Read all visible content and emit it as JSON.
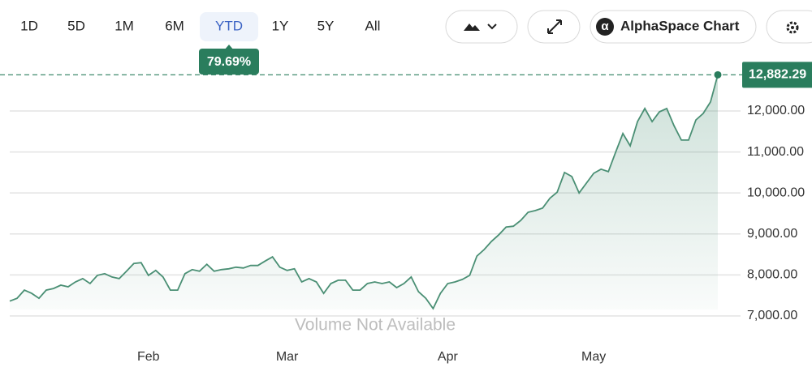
{
  "toolbar": {
    "ranges": [
      "1D",
      "5D",
      "1M",
      "6M",
      "YTD",
      "1Y",
      "5Y",
      "All"
    ],
    "selected": 4,
    "change": "79.69%",
    "chart_button": "AlphaSpace Chart"
  },
  "chart_data": {
    "type": "area",
    "annotation": "Volume Not Available",
    "color": "#4a8f74",
    "categories": [
      null,
      null,
      null,
      null,
      null,
      null,
      null,
      null,
      null,
      null,
      null,
      null,
      null,
      null,
      null,
      null,
      null,
      null,
      null,
      "Feb",
      null,
      null,
      null,
      null,
      null,
      null,
      null,
      null,
      null,
      null,
      null,
      null,
      null,
      null,
      null,
      null,
      null,
      null,
      "Mar",
      null,
      null,
      null,
      null,
      null,
      null,
      null,
      null,
      null,
      null,
      null,
      null,
      null,
      null,
      null,
      null,
      null,
      null,
      null,
      null,
      null,
      "Apr",
      null,
      null,
      null,
      null,
      null,
      null,
      null,
      null,
      null,
      null,
      null,
      null,
      null,
      null,
      null,
      null,
      null,
      null,
      null,
      "May",
      null,
      null,
      null,
      null,
      null,
      null,
      null,
      null,
      null,
      null,
      null,
      null,
      null,
      null,
      null,
      null,
      null
    ],
    "values": [
      7360,
      7430,
      7630,
      7550,
      7430,
      7630,
      7670,
      7750,
      7710,
      7830,
      7910,
      7790,
      7990,
      8030,
      7950,
      7910,
      8090,
      8280,
      8300,
      7990,
      8110,
      7950,
      7630,
      7630,
      8030,
      8130,
      8090,
      8260,
      8090,
      8130,
      8150,
      8190,
      8170,
      8230,
      8230,
      8340,
      8440,
      8190,
      8110,
      8150,
      7830,
      7910,
      7830,
      7550,
      7790,
      7870,
      7870,
      7630,
      7630,
      7790,
      7830,
      7790,
      7830,
      7690,
      7790,
      7950,
      7590,
      7430,
      7180,
      7550,
      7790,
      7830,
      7890,
      7990,
      8460,
      8620,
      8820,
      8980,
      9170,
      9190,
      9330,
      9530,
      9570,
      9630,
      9870,
      10020,
      10500,
      10400,
      10000,
      10240,
      10480,
      10580,
      10520,
      10990,
      11450,
      11150,
      11740,
      12060,
      11740,
      11980,
      12060,
      11640,
      11290,
      11290,
      11780,
      11940,
      12220,
      12882.29
    ],
    "value_labels": [
      null,
      null,
      null,
      null,
      null,
      null,
      null,
      null,
      null,
      null,
      null,
      null,
      null,
      null,
      null,
      null,
      null,
      null,
      null,
      null,
      null,
      null,
      null,
      null,
      null,
      null,
      null,
      null,
      null,
      null,
      null,
      null,
      null,
      null,
      null,
      null,
      null,
      null,
      null,
      null,
      null,
      null,
      null,
      null,
      null,
      null,
      null,
      null,
      null,
      null,
      null,
      null,
      null,
      null,
      null,
      null,
      null,
      null,
      null,
      null,
      null,
      null,
      null,
      null,
      null,
      null,
      null,
      null,
      null,
      null,
      null,
      null,
      null,
      null,
      null,
      null,
      null,
      null,
      null,
      null,
      null,
      null,
      null,
      null,
      null,
      null,
      null,
      null,
      null,
      null,
      null,
      null,
      null,
      null,
      null,
      null,
      null,
      "12,882.29"
    ],
    "ylim": [
      6600,
      13300
    ],
    "yticks": [
      {
        "value": 7000,
        "label": "7,000.00"
      },
      {
        "value": 8000,
        "label": "8,000.00"
      },
      {
        "value": 9000,
        "label": "9,000.00"
      },
      {
        "value": 10000,
        "label": "10,000.00"
      },
      {
        "value": 11000,
        "label": "11,000.00"
      },
      {
        "value": 12000,
        "label": "12,000.00"
      }
    ],
    "grid": true
  }
}
